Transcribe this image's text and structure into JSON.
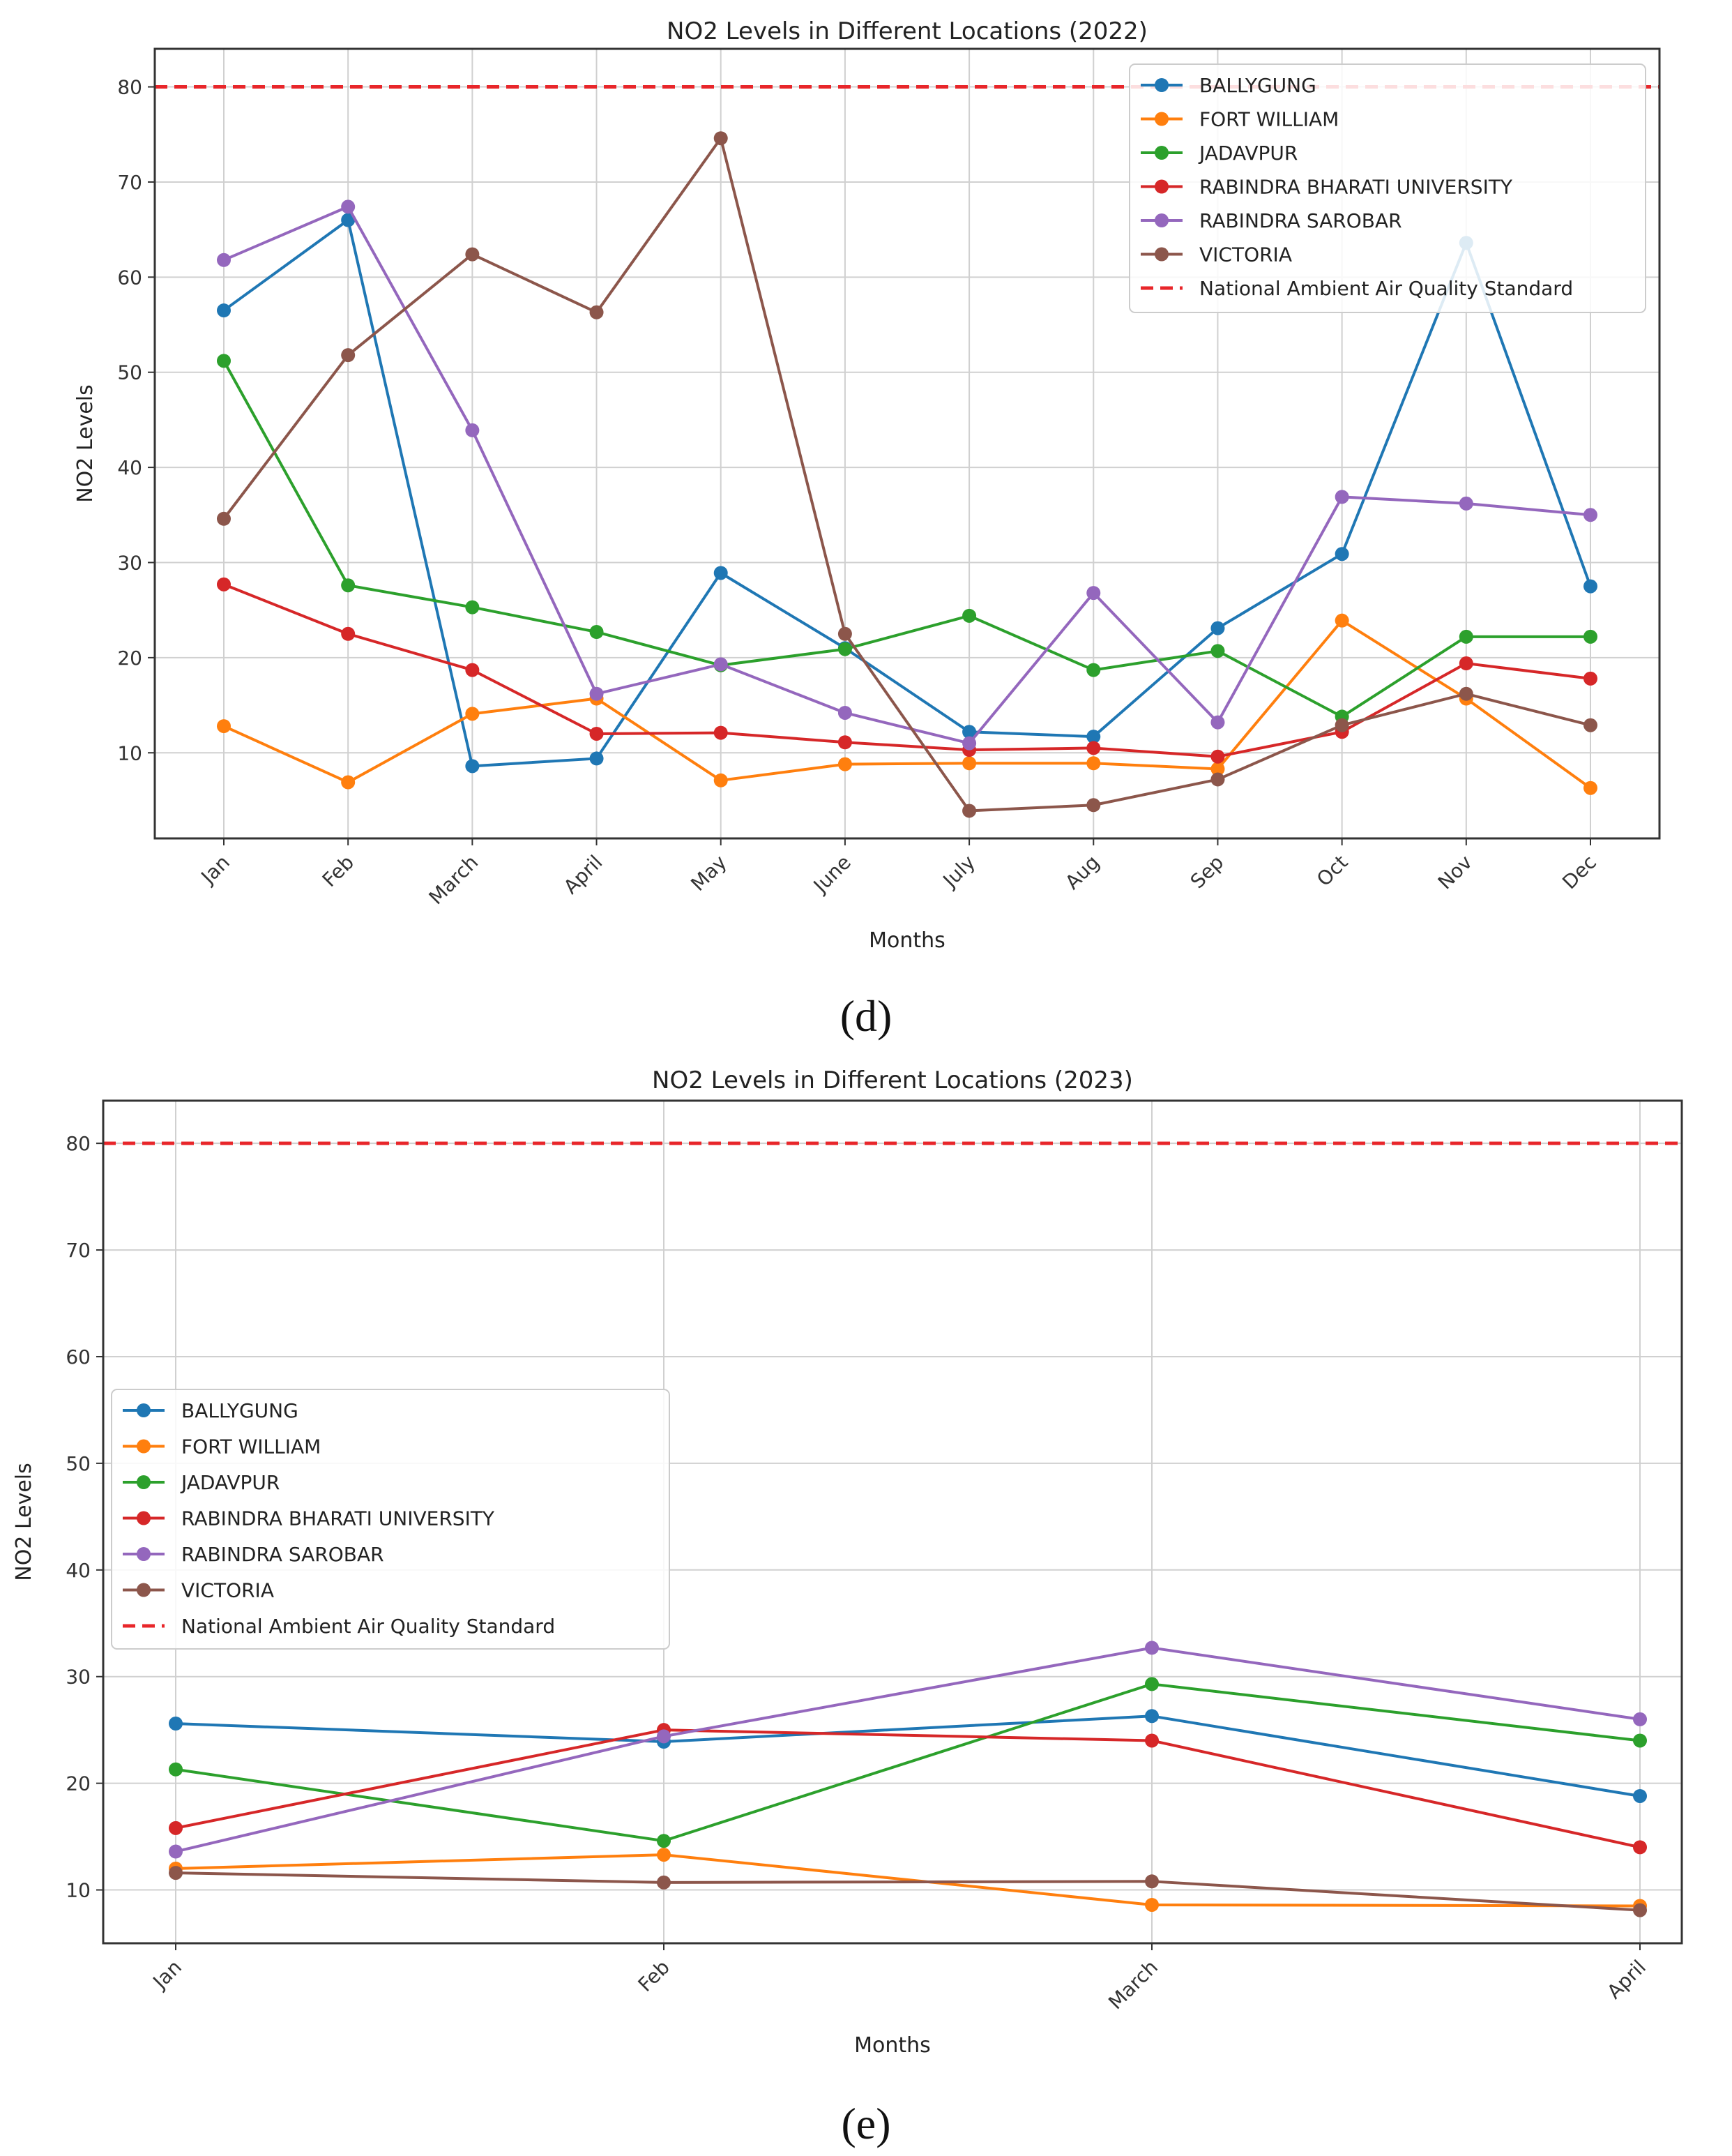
{
  "chart_data": [
    {
      "type": "line",
      "title": "NO2 Levels in Different Locations (2022)",
      "xlabel": "Months",
      "ylabel": "NO2 Levels",
      "categories": [
        "Jan",
        "Feb",
        "March",
        "April",
        "May",
        "June",
        "July",
        "Aug",
        "Sep",
        "Oct",
        "Nov",
        "Dec"
      ],
      "ylim": [
        1,
        84
      ],
      "yticks": [
        10,
        20,
        30,
        40,
        50,
        60,
        70,
        80
      ],
      "grid": true,
      "legend_position": "upper right",
      "reference_line": {
        "name": "National Ambient Air Quality Standard",
        "value": 80,
        "color": "#e8262a"
      },
      "series": [
        {
          "name": "BALLYGUNG",
          "color": "#1f77b4",
          "values": [
            56.5,
            66,
            8.6,
            9.4,
            28.9,
            21,
            12.2,
            11.7,
            23.1,
            30.9,
            63.6,
            27.5
          ]
        },
        {
          "name": "FORT WILLIAM",
          "color": "#ff7f0e",
          "values": [
            12.8,
            6.9,
            14.1,
            15.7,
            7.1,
            8.8,
            8.9,
            8.9,
            8.3,
            23.9,
            15.7,
            6.3
          ]
        },
        {
          "name": "JADAVPUR",
          "color": "#2ca02c",
          "values": [
            51.2,
            27.6,
            25.3,
            22.7,
            19.2,
            20.9,
            24.4,
            18.7,
            20.7,
            13.8,
            22.2,
            22.2
          ]
        },
        {
          "name": "RABINDRA BHARATI UNIVERSITY",
          "color": "#d62728",
          "values": [
            27.7,
            22.5,
            18.7,
            12,
            12.1,
            11.1,
            10.3,
            10.5,
            9.6,
            12.2,
            19.4,
            17.8
          ]
        },
        {
          "name": "RABINDRA SAROBAR",
          "color": "#9467bd",
          "values": [
            61.8,
            67.4,
            43.9,
            16.2,
            19.3,
            14.2,
            11,
            26.8,
            13.2,
            36.9,
            36.2,
            35
          ]
        },
        {
          "name": "VICTORIA",
          "color": "#8c564b",
          "values": [
            34.6,
            51.8,
            62.4,
            56.3,
            74.6,
            22.5,
            3.9,
            4.5,
            7.2,
            12.9,
            16.2,
            12.9
          ]
        }
      ],
      "caption": "(d)"
    },
    {
      "type": "line",
      "title": "NO2 Levels in Different Locations (2023)",
      "xlabel": "Months",
      "ylabel": "NO2 Levels",
      "categories": [
        "Jan",
        "Feb",
        "March",
        "April"
      ],
      "ylim": [
        5,
        84
      ],
      "yticks": [
        10,
        20,
        30,
        40,
        50,
        60,
        70,
        80
      ],
      "grid": true,
      "legend_position": "center left",
      "reference_line": {
        "name": "National Ambient Air Quality Standard",
        "value": 80,
        "color": "#e8262a"
      },
      "series": [
        {
          "name": "BALLYGUNG",
          "color": "#1f77b4",
          "values": [
            25.6,
            23.9,
            26.3,
            18.8
          ]
        },
        {
          "name": "FORT WILLIAM",
          "color": "#ff7f0e",
          "values": [
            12,
            13.3,
            8.6,
            8.5
          ]
        },
        {
          "name": "JADAVPUR",
          "color": "#2ca02c",
          "values": [
            21.3,
            14.6,
            29.3,
            24
          ]
        },
        {
          "name": "RABINDRA BHARATI UNIVERSITY",
          "color": "#d62728",
          "values": [
            15.8,
            25,
            24,
            14
          ]
        },
        {
          "name": "RABINDRA SAROBAR",
          "color": "#9467bd",
          "values": [
            13.6,
            24.4,
            32.7,
            26
          ]
        },
        {
          "name": "VICTORIA",
          "color": "#8c564b",
          "values": [
            11.6,
            10.7,
            10.8,
            8.1
          ]
        }
      ],
      "caption": "(e)"
    }
  ]
}
